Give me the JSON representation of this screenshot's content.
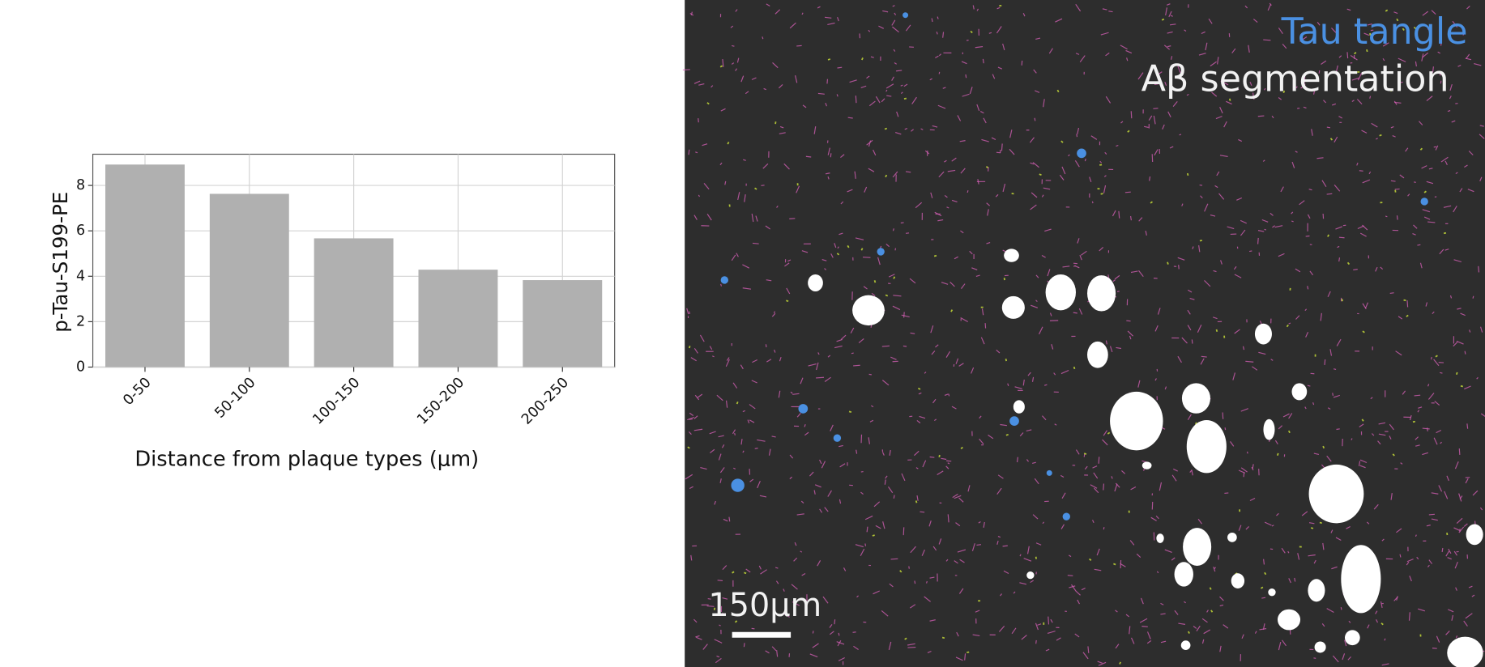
{
  "chart_data": {
    "type": "bar",
    "categories": [
      "0-50",
      "50-100",
      "100-150",
      "150-200",
      "200-250"
    ],
    "values": [
      8.92,
      7.63,
      5.67,
      4.29,
      3.83
    ],
    "color": "#b0b0b0",
    "ylim": [
      0,
      9.375
    ],
    "yticks": [
      0,
      2,
      4,
      6,
      8
    ],
    "grid": true,
    "y_label": "p-Tau-S199-PE",
    "x_label": "Distance from plaque types (μm)"
  },
  "image_panel": {
    "legend": [
      "Tau tangle",
      "Aβ segmentation"
    ],
    "scale_bar": "150μm"
  }
}
